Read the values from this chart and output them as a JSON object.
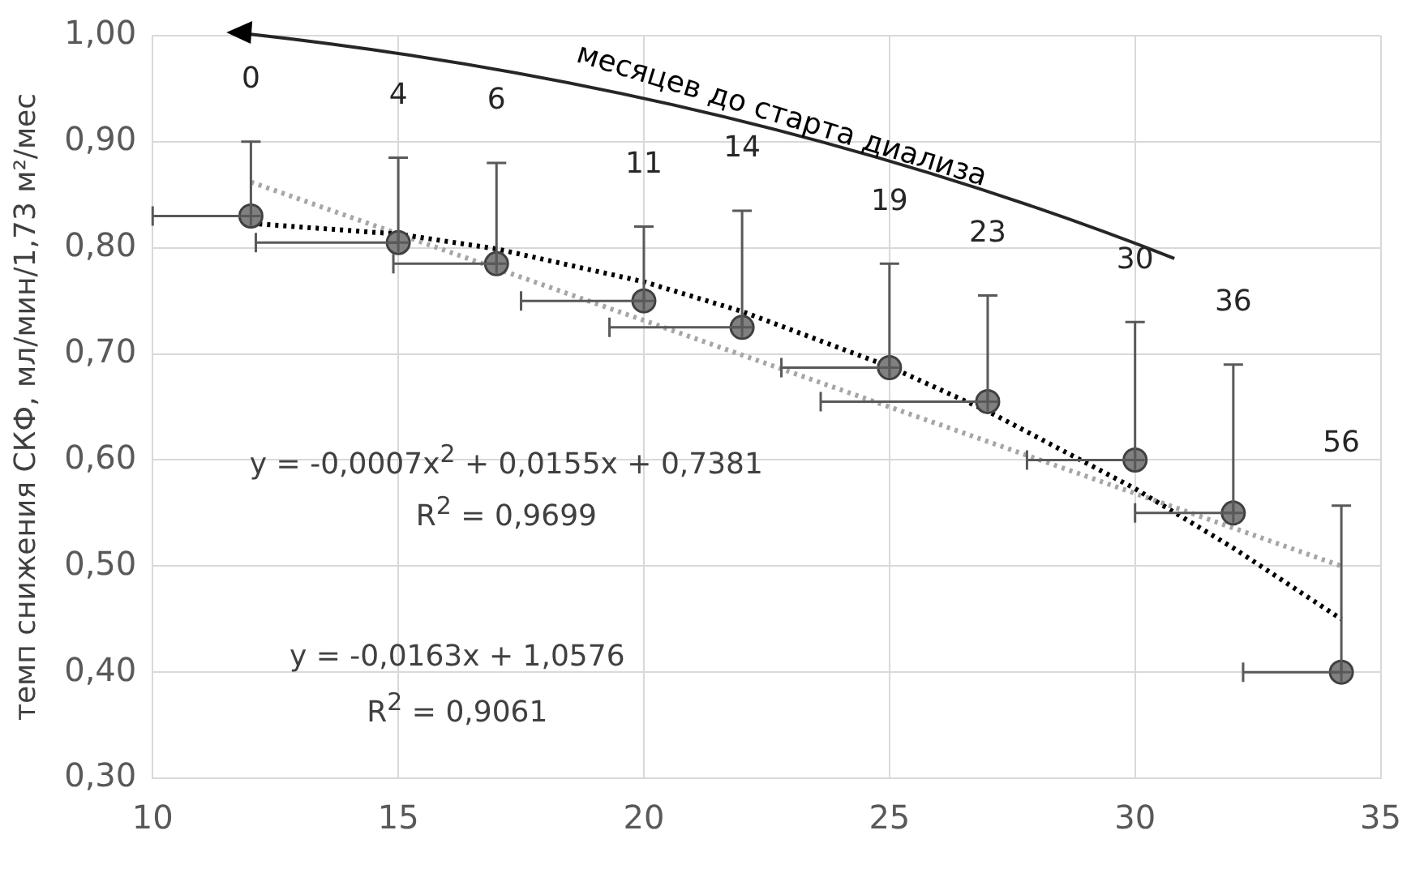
{
  "chart_data": {
    "type": "scatter",
    "ylabel": "темп снижения СКФ, мл/мин/1,73 м²/мес",
    "annotations": [
      "месяцев до старта диализа",
      "y = -0,0007x$^{2}$ + 0,0155x + 0,7381",
      "R$^{2}$ = 0,9699",
      "y = -0,0163x + 1,0576",
      "R$^{2}$ = 0,9061",
      "0",
      "4",
      "6",
      "11",
      "14",
      "19",
      "23",
      "30",
      "36",
      "56"
    ],
    "xlim": [
      10,
      35
    ],
    "xticks": [
      10,
      15,
      20,
      25,
      30,
      35
    ],
    "ylim": [
      0.3,
      1.0
    ],
    "yticks": [
      {
        "value": 0.3,
        "label": "0,30"
      },
      {
        "value": 0.4,
        "label": "0,40"
      },
      {
        "value": 0.5,
        "label": "0,50"
      },
      {
        "value": 0.6,
        "label": "0,60"
      },
      {
        "value": 0.7,
        "label": "0,70"
      },
      {
        "value": 0.8,
        "label": "0,80"
      },
      {
        "value": 0.9,
        "label": "0,90"
      },
      {
        "value": 1.0,
        "label": "1,00"
      }
    ],
    "grid": true,
    "marker": "circle",
    "series": [
      {
        "type": "scatter",
        "color": "#808080",
        "x": [
          12,
          15,
          17,
          20,
          22,
          25,
          27,
          30,
          32,
          34.2
        ],
        "values": [
          0.83,
          0.805,
          0.785,
          0.75,
          0.725,
          0.687,
          0.655,
          0.6,
          0.55,
          0.4
        ],
        "errors": [
          [
            0.83,
            0.9
          ],
          [
            0.805,
            0.885
          ],
          [
            0.785,
            0.88
          ],
          [
            0.75,
            0.82
          ],
          [
            0.725,
            0.835
          ],
          [
            0.687,
            0.785
          ],
          [
            0.655,
            0.755
          ],
          [
            0.6,
            0.73
          ],
          [
            0.55,
            0.69
          ],
          [
            0.4,
            0.557
          ]
        ],
        "xerrors": [
          [
            10,
            12
          ],
          [
            12.1,
            15
          ],
          [
            14.9,
            17
          ],
          [
            17.5,
            20
          ],
          [
            19.3,
            22
          ],
          [
            22.8,
            25
          ],
          [
            23.6,
            27
          ],
          [
            27.8,
            30
          ],
          [
            30,
            32
          ],
          [
            32.2,
            34.2
          ]
        ]
      },
      {
        "type": "line",
        "color": "#000000",
        "line_style": "dotted",
        "marker": "none",
        "x": [
          12,
          15,
          17,
          20,
          22,
          25,
          27,
          30,
          32,
          34.2
        ],
        "values": [
          0.823,
          0.813,
          0.799,
          0.768,
          0.74,
          0.688,
          0.646,
          0.573,
          0.517,
          0.45
        ]
      },
      {
        "type": "line",
        "color": "#a6a6a6",
        "line_style": "dotted",
        "marker": "none",
        "x": [
          12,
          34.2
        ],
        "values": [
          0.862,
          0.5
        ]
      }
    ]
  }
}
